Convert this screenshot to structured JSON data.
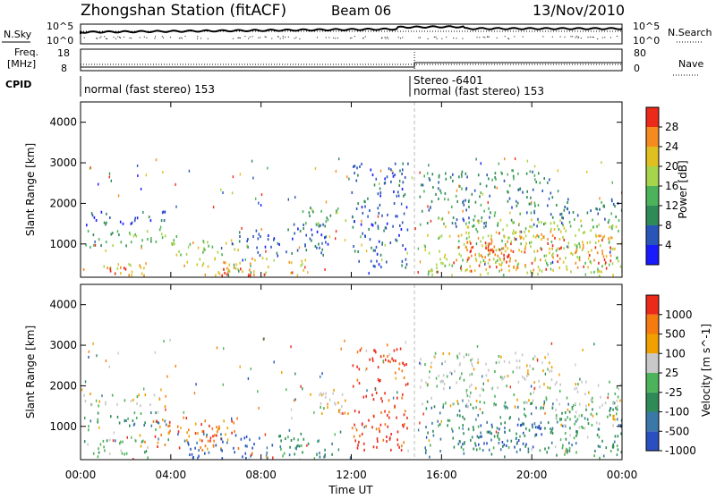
{
  "header": {
    "station": "Zhongshan Station (fitACF)",
    "beam": "Beam 06",
    "date": "13/Nov/2010"
  },
  "strips": {
    "nsky_label": "N.Sky",
    "nsearch_label": "N.Search",
    "n_left_ticks": [
      "10^5",
      "10^0"
    ],
    "n_right_ticks": [
      "10^5",
      "10^0"
    ],
    "freq_label_line1": "Freq.",
    "freq_label_line2": "[MHz]",
    "freq_ticks": [
      "18",
      "8"
    ],
    "nave_label": "Nave",
    "nave_ticks": [
      "80",
      "0"
    ],
    "cpid_label": "CPID",
    "cpid_segments": [
      {
        "label": "normal (fast stereo) 153",
        "start_hour": 0
      },
      {
        "label": "Stereo -6401",
        "start_hour": 14.8
      },
      {
        "label": "normal (fast stereo) 153",
        "start_hour": 14.8
      }
    ]
  },
  "chart_data": [
    {
      "type": "heatmap",
      "name": "power",
      "ylabel": "Slant Range [km]",
      "xlabel": "Time UT",
      "xlim": [
        0,
        24
      ],
      "ylim": [
        180,
        4500
      ],
      "yticks": [
        "1000",
        "2000",
        "3000",
        "4000"
      ],
      "colorbar": {
        "label": "Power [dB]",
        "ticks": [
          "4",
          "8",
          "12",
          "16",
          "20",
          "24",
          "28"
        ],
        "colors": [
          "#1a1aff",
          "#2a55b8",
          "#2e8b57",
          "#4db35a",
          "#a6d44a",
          "#e0c020",
          "#f58a1f",
          "#ec2a1a"
        ]
      },
      "regions": [
        {
          "t0": 0.1,
          "t1": 3.9,
          "r0": 1450,
          "r1": 1800,
          "level": 1
        },
        {
          "t0": 0.2,
          "t1": 4.5,
          "r0": 900,
          "r1": 1350,
          "level": 3
        },
        {
          "t0": 0.1,
          "t1": 3.0,
          "r0": 200,
          "r1": 520,
          "level": 5
        },
        {
          "t0": 1.0,
          "t1": 2.8,
          "r0": 250,
          "r1": 420,
          "level": 7
        },
        {
          "t0": 4.0,
          "t1": 7.5,
          "r0": 700,
          "r1": 1100,
          "level": 4
        },
        {
          "t0": 4.5,
          "t1": 10.0,
          "r0": 200,
          "r1": 650,
          "level": 5
        },
        {
          "t0": 6.0,
          "t1": 9.5,
          "r0": 200,
          "r1": 380,
          "level": 7
        },
        {
          "t0": 7.0,
          "t1": 11.0,
          "r0": 700,
          "r1": 1500,
          "level": 1
        },
        {
          "t0": 9.8,
          "t1": 12.0,
          "r0": 1400,
          "r1": 1900,
          "level": 3
        },
        {
          "t0": 12.0,
          "t1": 14.5,
          "r0": 400,
          "r1": 3000,
          "level": 1
        },
        {
          "t0": 15.0,
          "t1": 21.0,
          "r0": 1400,
          "r1": 2800,
          "level": 2
        },
        {
          "t0": 15.2,
          "t1": 24.0,
          "r0": 200,
          "r1": 1600,
          "level": 4
        },
        {
          "t0": 16.5,
          "t1": 23.5,
          "r0": 300,
          "r1": 1300,
          "level": 6
        },
        {
          "t0": 17.0,
          "t1": 19.5,
          "r0": 500,
          "r1": 1100,
          "level": 7
        },
        {
          "t0": 21.0,
          "t1": 24.0,
          "r0": 1300,
          "r1": 2100,
          "level": 2
        }
      ]
    },
    {
      "type": "heatmap",
      "name": "velocity",
      "ylabel": "Slant Range [km]",
      "xlabel": "Time UT",
      "xlim": [
        0,
        24
      ],
      "ylim": [
        180,
        4500
      ],
      "yticks": [
        "1000",
        "2000",
        "3000",
        "4000"
      ],
      "colorbar": {
        "label": "Velocity [m s^-1]",
        "ticks": [
          "1000",
          "500",
          "100",
          "25",
          "-25",
          "-100",
          "-500",
          "-1000"
        ],
        "colors": [
          "#2a4fc0",
          "#3a78a8",
          "#2e8b57",
          "#4db35a",
          "#c8c8c8",
          "#f0a000",
          "#f57a10",
          "#ec2a1a"
        ]
      },
      "regions": [
        {
          "t0": 0.1,
          "t1": 3.8,
          "r0": 1450,
          "r1": 1800,
          "level": 4
        },
        {
          "t0": 0.2,
          "t1": 4.0,
          "r0": 900,
          "r1": 1350,
          "level": 2
        },
        {
          "t0": 0.1,
          "t1": 3.0,
          "r0": 200,
          "r1": 700,
          "level": 3
        },
        {
          "t0": 2.5,
          "t1": 7.0,
          "r0": 400,
          "r1": 1200,
          "level": 6
        },
        {
          "t0": 4.5,
          "t1": 8.5,
          "r0": 200,
          "r1": 800,
          "level": 0
        },
        {
          "t0": 8.5,
          "t1": 11.5,
          "r0": 200,
          "r1": 900,
          "level": 2
        },
        {
          "t0": 9.8,
          "t1": 12.0,
          "r0": 1300,
          "r1": 1900,
          "level": 4
        },
        {
          "t0": 12.0,
          "t1": 14.5,
          "r0": 400,
          "r1": 3000,
          "level": 7
        },
        {
          "t0": 15.0,
          "t1": 21.0,
          "r0": 1400,
          "r1": 2800,
          "level": 4
        },
        {
          "t0": 15.2,
          "t1": 24.0,
          "r0": 200,
          "r1": 1600,
          "level": 2
        },
        {
          "t0": 17.5,
          "t1": 20.5,
          "r0": 400,
          "r1": 1100,
          "level": 0
        },
        {
          "t0": 21.0,
          "t1": 24.0,
          "r0": 900,
          "r1": 2100,
          "level": 4
        }
      ]
    }
  ],
  "xaxis": {
    "ticks": [
      "00:00",
      "04:00",
      "08:00",
      "12:00",
      "16:00",
      "20:00",
      "00:00"
    ],
    "label": "Time UT"
  }
}
